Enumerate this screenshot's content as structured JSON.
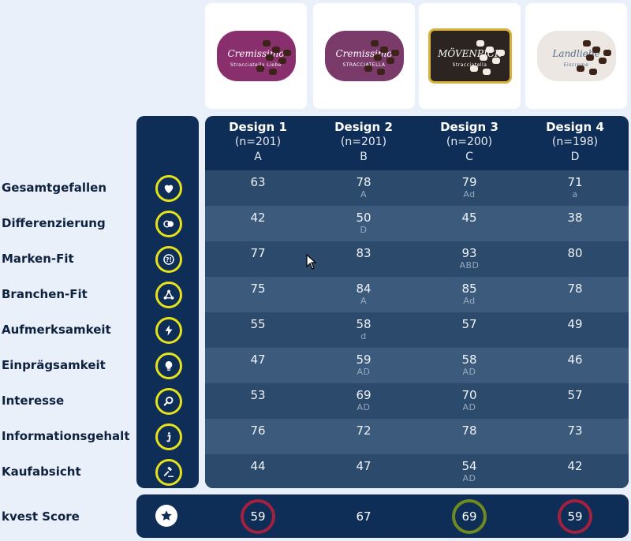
{
  "products": [
    {
      "name": "Cremissimo",
      "sub": "Stracciatella Liebe",
      "color": "#8a2f6e"
    },
    {
      "name": "Cremissimo",
      "sub": "STRACCIATELLA",
      "color": "#7a3a6a"
    },
    {
      "name": "MÖVENPICK",
      "sub": "Stracciatella",
      "color": "#2b2420"
    },
    {
      "name": "Landliebe",
      "sub": "Eiscreme",
      "color": "#ece7e2"
    }
  ],
  "designs": [
    {
      "name": "Design 1",
      "n": "(n=201)",
      "letter": "A"
    },
    {
      "name": "Design 2",
      "n": "(n=201)",
      "letter": "B"
    },
    {
      "name": "Design 3",
      "n": "(n=200)",
      "letter": "C"
    },
    {
      "name": "Design 4",
      "n": "(n=198)",
      "letter": "D"
    }
  ],
  "rows": [
    {
      "label": "Gesamtgefallen",
      "icon": "heart-icon",
      "cells": [
        {
          "v": "63",
          "s": ""
        },
        {
          "v": "78",
          "s": "A"
        },
        {
          "v": "79",
          "s": "Ad"
        },
        {
          "v": "71",
          "s": "a"
        }
      ]
    },
    {
      "label": "Differenzierung",
      "icon": "differentiation-icon",
      "cells": [
        {
          "v": "42",
          "s": ""
        },
        {
          "v": "50",
          "s": "D"
        },
        {
          "v": "45",
          "s": ""
        },
        {
          "v": "38",
          "s": ""
        }
      ]
    },
    {
      "label": "Marken-Fit",
      "icon": "question-exclamation-icon",
      "cells": [
        {
          "v": "77",
          "s": ""
        },
        {
          "v": "83",
          "s": ""
        },
        {
          "v": "93",
          "s": "ABD"
        },
        {
          "v": "80",
          "s": ""
        }
      ]
    },
    {
      "label": "Branchen-Fit",
      "icon": "network-icon",
      "cells": [
        {
          "v": "75",
          "s": ""
        },
        {
          "v": "84",
          "s": "A"
        },
        {
          "v": "85",
          "s": "Ad"
        },
        {
          "v": "78",
          "s": ""
        }
      ]
    },
    {
      "label": "Aufmerksamkeit",
      "icon": "lightning-icon",
      "cells": [
        {
          "v": "55",
          "s": ""
        },
        {
          "v": "58",
          "s": "d"
        },
        {
          "v": "57",
          "s": ""
        },
        {
          "v": "49",
          "s": ""
        }
      ]
    },
    {
      "label": "Einprägsamkeit",
      "icon": "lightbulb-icon",
      "cells": [
        {
          "v": "47",
          "s": ""
        },
        {
          "v": "59",
          "s": "AD"
        },
        {
          "v": "58",
          "s": "AD"
        },
        {
          "v": "46",
          "s": ""
        }
      ]
    },
    {
      "label": "Interesse",
      "icon": "magnifier-icon",
      "cells": [
        {
          "v": "53",
          "s": ""
        },
        {
          "v": "69",
          "s": "AD"
        },
        {
          "v": "70",
          "s": "AD"
        },
        {
          "v": "57",
          "s": ""
        }
      ]
    },
    {
      "label": "Informationsgehalt",
      "icon": "info-icon",
      "cells": [
        {
          "v": "76",
          "s": ""
        },
        {
          "v": "72",
          "s": ""
        },
        {
          "v": "78",
          "s": ""
        },
        {
          "v": "73",
          "s": ""
        }
      ]
    },
    {
      "label": "Kaufabsicht",
      "icon": "gavel-icon",
      "cells": [
        {
          "v": "44",
          "s": ""
        },
        {
          "v": "47",
          "s": ""
        },
        {
          "v": "54",
          "s": "AD"
        },
        {
          "v": "42",
          "s": ""
        }
      ]
    }
  ],
  "score": {
    "label": "kvest Score",
    "icon": "star-icon",
    "values": [
      {
        "v": "59",
        "ring": "#a3213f"
      },
      {
        "v": "67",
        "ring": ""
      },
      {
        "v": "69",
        "ring": "#6f8a1f"
      },
      {
        "v": "59",
        "ring": "#a3213f"
      }
    ]
  },
  "colors": {
    "panel": "#0e2d57",
    "icon_ring": "#e5e21c",
    "label_text": "#0e2240"
  }
}
